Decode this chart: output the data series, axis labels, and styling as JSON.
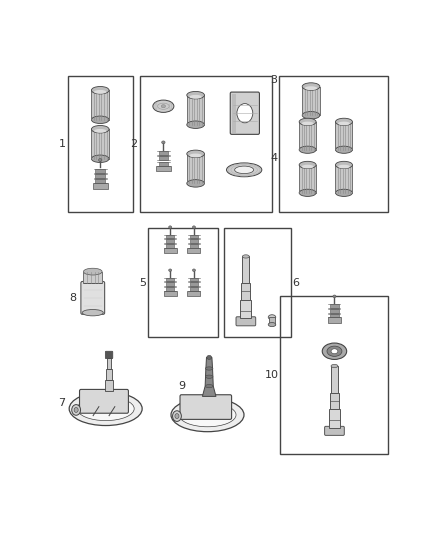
{
  "background_color": "#ffffff",
  "border_color": "#444444",
  "text_color": "#333333",
  "part_color": "#555555",
  "fig_width": 4.38,
  "fig_height": 5.33,
  "dpi": 100
}
